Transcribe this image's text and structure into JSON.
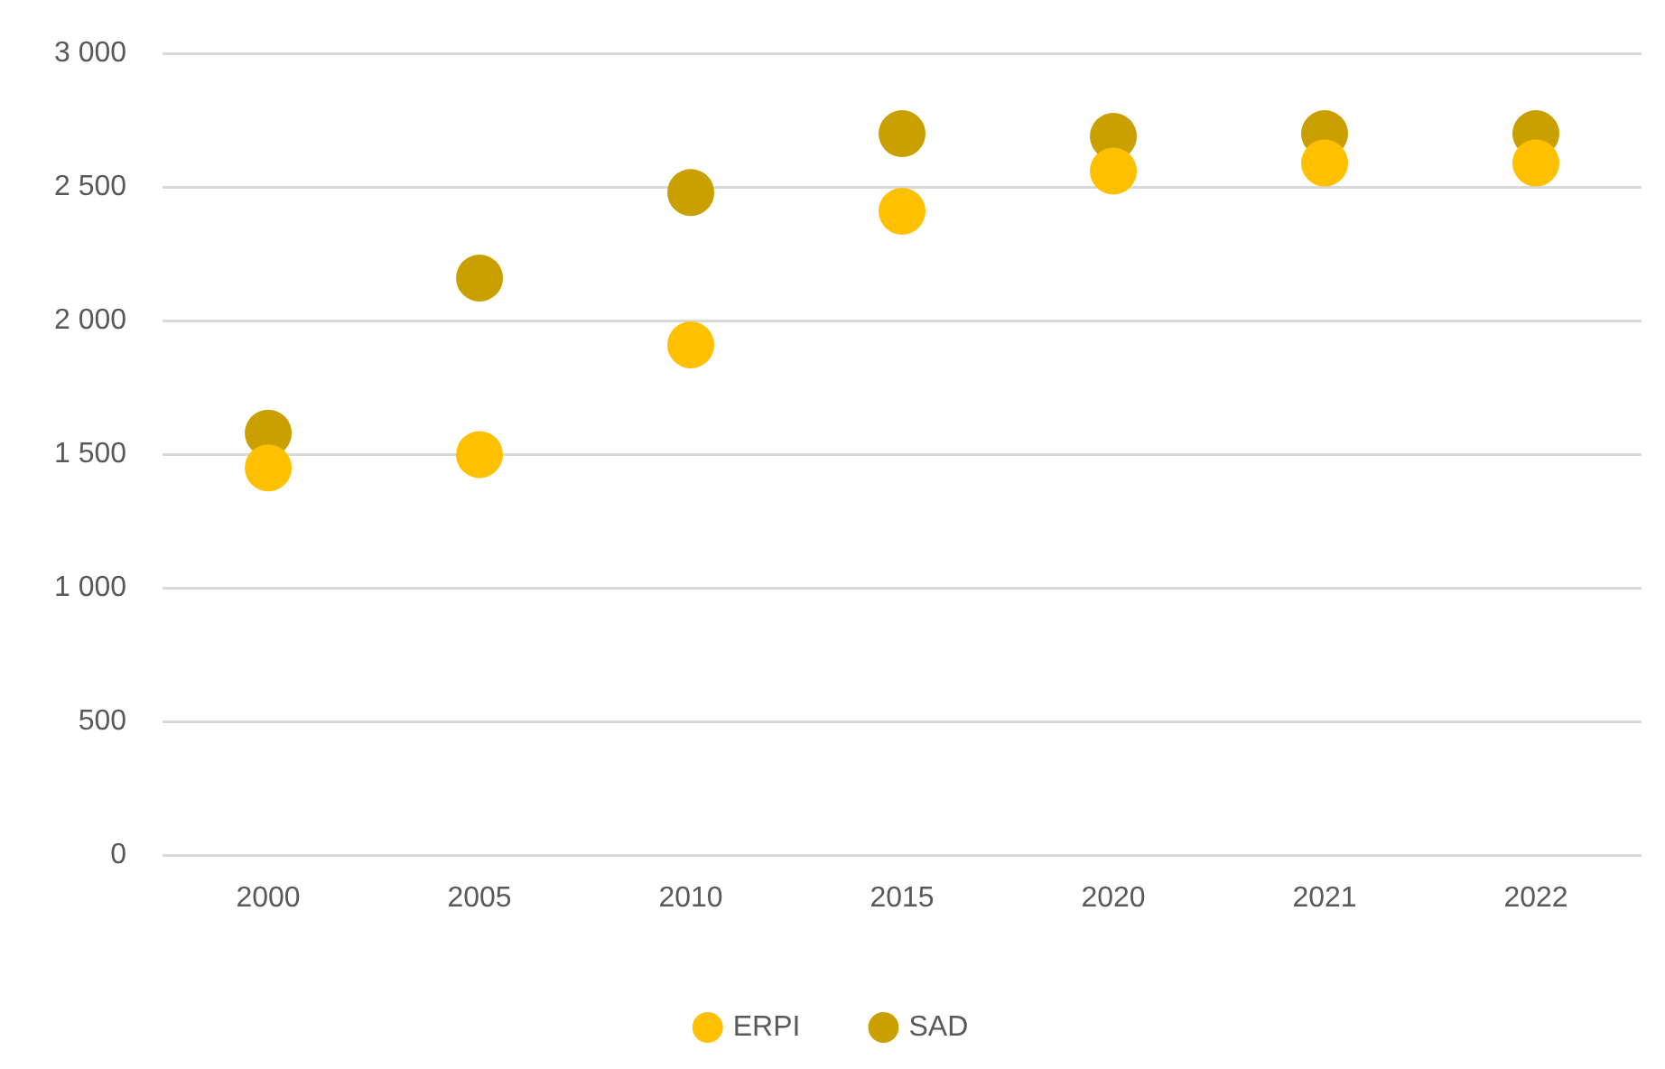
{
  "chart_data": {
    "type": "scatter",
    "categories": [
      "2000",
      "2005",
      "2010",
      "2015",
      "2020",
      "2021",
      "2022"
    ],
    "series": [
      {
        "name": "ERPI",
        "color": "#ffc000",
        "values": [
          1450,
          1500,
          1910,
          2410,
          2560,
          2590,
          2590
        ]
      },
      {
        "name": "SAD",
        "color": "#c9a000",
        "values": [
          1580,
          2160,
          2480,
          2700,
          2690,
          2700,
          2700
        ]
      }
    ],
    "ylim": [
      0,
      3000
    ],
    "yticks": [
      0,
      500,
      {
        "value": 1000,
        "label": "1 000"
      },
      {
        "value": 1500,
        "label": "1 500"
      },
      {
        "value": 2000,
        "label": "2 000"
      },
      {
        "value": 2500,
        "label": "2 500"
      },
      {
        "value": 3000,
        "label": "3 000"
      }
    ],
    "grid": "y",
    "legend": "bottom",
    "marker": "circle"
  }
}
